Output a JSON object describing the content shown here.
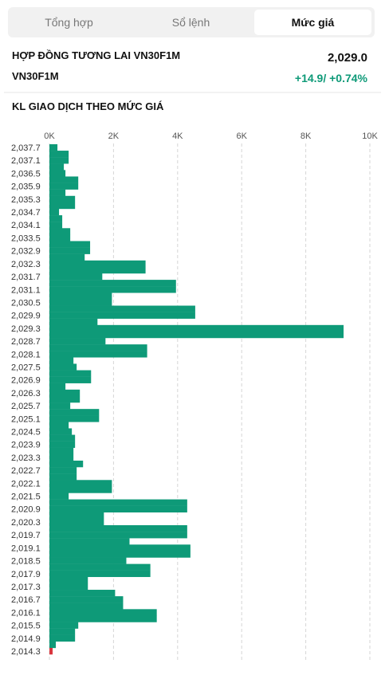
{
  "tabs": [
    "Tổng hợp",
    "Sổ lệnh",
    "Mức giá"
  ],
  "active_tab": 2,
  "header": {
    "contract": "HỢP ĐỒNG TƯƠNG LAI VN30F1M",
    "price": "2,029.0",
    "symbol": "VN30F1M",
    "change": "+14.9/ +0.74%"
  },
  "chart_data": {
    "type": "hbar",
    "title": "KL GIAO DỊCH THEO MỨC GIÁ",
    "categories": [
      "2,037.7",
      null,
      "2,037.1",
      null,
      "2,036.5",
      null,
      "2,035.9",
      null,
      "2,035.3",
      null,
      "2,034.7",
      null,
      "2,034.1",
      null,
      "2,033.5",
      null,
      "2,032.9",
      null,
      "2,032.3",
      null,
      "2,031.7",
      null,
      "2,031.1",
      null,
      "2,030.5",
      null,
      "2,029.9",
      null,
      "2,029.3",
      null,
      "2,028.7",
      null,
      "2,028.1",
      null,
      "2,027.5",
      null,
      "2,026.9",
      null,
      "2,026.3",
      null,
      "2,025.7",
      null,
      "2,025.1",
      null,
      "2,024.5",
      null,
      "2,023.9",
      null,
      "2,023.3",
      null,
      "2,022.7",
      null,
      "2,022.1",
      null,
      "2,021.5",
      null,
      "2,020.9",
      null,
      "2,020.3",
      null,
      "2,019.7",
      null,
      "2,019.1",
      null,
      "2,018.5",
      null,
      "2,017.9",
      null,
      "2,017.3",
      null,
      "2,016.7",
      null,
      "2,016.1",
      null,
      "2,015.5",
      null,
      "2,014.9",
      null,
      "2,014.3"
    ],
    "values": [
      250,
      600,
      600,
      450,
      500,
      900,
      900,
      500,
      800,
      800,
      300,
      400,
      400,
      650,
      650,
      1270,
      1270,
      1100,
      3000,
      3000,
      1650,
      3950,
      3950,
      1950,
      1950,
      4550,
      4550,
      1500,
      9180,
      9180,
      1750,
      3050,
      3050,
      750,
      850,
      1300,
      1300,
      500,
      950,
      950,
      650,
      1550,
      1550,
      600,
      700,
      800,
      800,
      750,
      750,
      1050,
      850,
      850,
      1950,
      1950,
      600,
      4300,
      4300,
      1700,
      1700,
      4300,
      4300,
      2500,
      4400,
      4400,
      2400,
      3150,
      3150,
      1200,
      1200,
      2050,
      2300,
      2300,
      3350,
      3350,
      900,
      800,
      800,
      200,
      100
    ],
    "colors": [
      "#0e9a78",
      "#0e9a78",
      "#0e9a78",
      "#0e9a78",
      "#0e9a78",
      "#0e9a78",
      "#0e9a78",
      "#0e9a78",
      "#0e9a78",
      "#0e9a78",
      "#0e9a78",
      "#0e9a78",
      "#0e9a78",
      "#0e9a78",
      "#0e9a78",
      "#0e9a78",
      "#0e9a78",
      "#0e9a78",
      "#0e9a78",
      "#0e9a78",
      "#0e9a78",
      "#0e9a78",
      "#0e9a78",
      "#0e9a78",
      "#0e9a78",
      "#0e9a78",
      "#0e9a78",
      "#0e9a78",
      "#0e9a78",
      "#0e9a78",
      "#0e9a78",
      "#0e9a78",
      "#0e9a78",
      "#0e9a78",
      "#0e9a78",
      "#0e9a78",
      "#0e9a78",
      "#0e9a78",
      "#0e9a78",
      "#0e9a78",
      "#0e9a78",
      "#0e9a78",
      "#0e9a78",
      "#0e9a78",
      "#0e9a78",
      "#0e9a78",
      "#0e9a78",
      "#0e9a78",
      "#0e9a78",
      "#0e9a78",
      "#0e9a78",
      "#0e9a78",
      "#0e9a78",
      "#0e9a78",
      "#0e9a78",
      "#0e9a78",
      "#0e9a78",
      "#0e9a78",
      "#0e9a78",
      "#0e9a78",
      "#0e9a78",
      "#0e9a78",
      "#0e9a78",
      "#0e9a78",
      "#0e9a78",
      "#0e9a78",
      "#0e9a78",
      "#0e9a78",
      "#0e9a78",
      "#0e9a78",
      "#0e9a78",
      "#0e9a78",
      "#0e9a78",
      "#0e9a78",
      "#0e9a78",
      "#0e9a78",
      "#0e9a78",
      "#0e9a78",
      "#d9363e"
    ],
    "xlim": [
      0,
      10000
    ],
    "xticks": [
      {
        "value": 0,
        "label": "0K"
      },
      {
        "value": 2000,
        "label": "2K"
      },
      {
        "value": 4000,
        "label": "4K"
      },
      {
        "value": 6000,
        "label": "6K"
      },
      {
        "value": 8000,
        "label": "8K"
      },
      {
        "value": 10000,
        "label": "10K"
      }
    ],
    "grid": true
  }
}
